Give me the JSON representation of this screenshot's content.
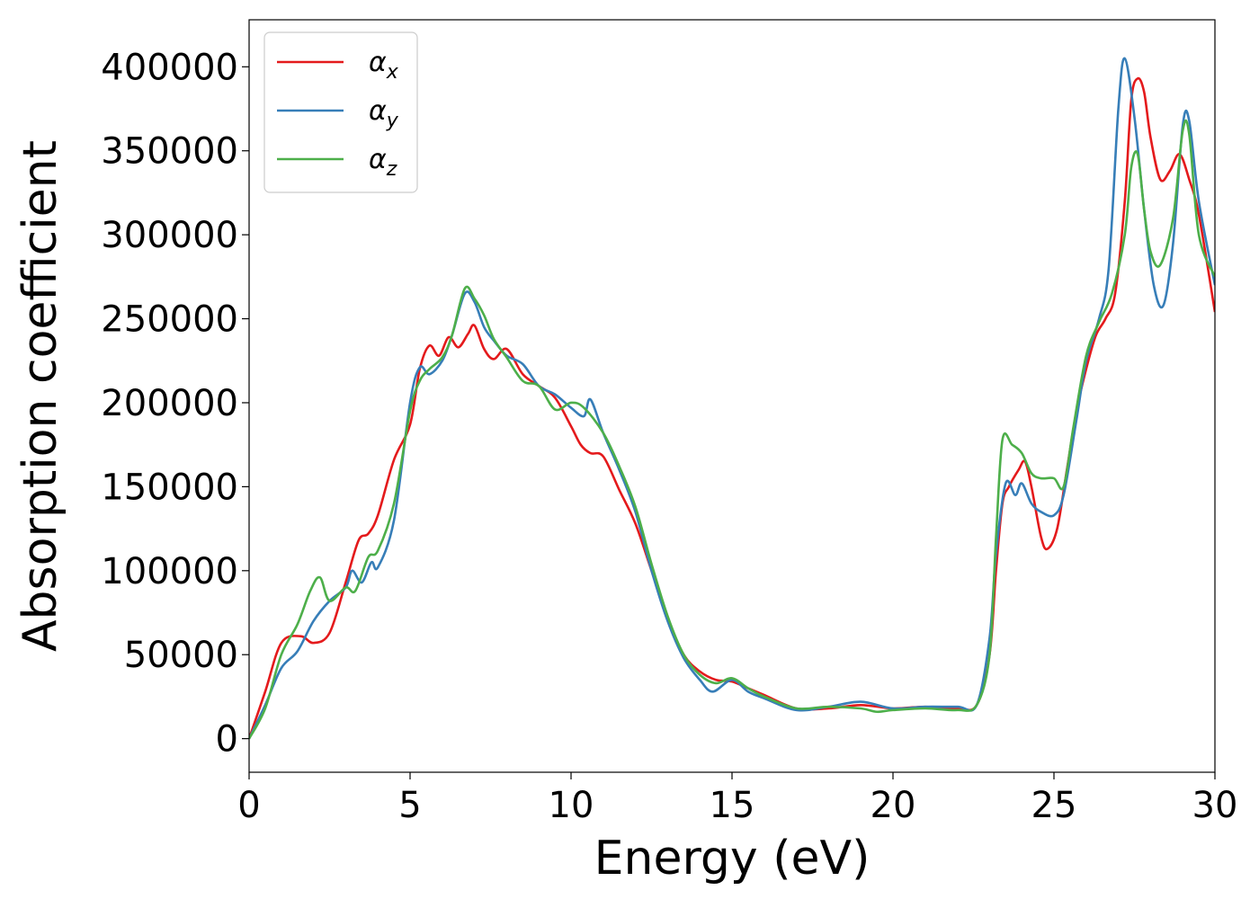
{
  "chart_data": {
    "type": "line",
    "title": "",
    "xlabel": "Energy (eV)",
    "ylabel": "Absorption coefficient",
    "xlim": [
      0,
      30
    ],
    "ylim": [
      -20000,
      428000
    ],
    "xticks": [
      0,
      5,
      10,
      15,
      20,
      25,
      30
    ],
    "yticks": [
      0,
      50000,
      100000,
      150000,
      200000,
      250000,
      300000,
      350000,
      400000
    ],
    "xtick_labels": [
      "0",
      "5",
      "10",
      "15",
      "20",
      "25",
      "30"
    ],
    "ytick_labels": [
      "0",
      "50000",
      "100000",
      "150000",
      "200000",
      "250000",
      "300000",
      "350000",
      "400000"
    ],
    "grid": false,
    "legend_position": "top-left",
    "series": [
      {
        "name": "α",
        "subscript": "x",
        "color": "#e41a1c",
        "points": [
          [
            0,
            0
          ],
          [
            0.5,
            28000
          ],
          [
            1,
            57000
          ],
          [
            1.6,
            61000
          ],
          [
            2,
            57000
          ],
          [
            2.5,
            63000
          ],
          [
            3,
            93000
          ],
          [
            3.4,
            118000
          ],
          [
            3.7,
            122000
          ],
          [
            4,
            133000
          ],
          [
            4.5,
            166000
          ],
          [
            5,
            187000
          ],
          [
            5.3,
            220000
          ],
          [
            5.6,
            234000
          ],
          [
            5.9,
            228000
          ],
          [
            6.2,
            239000
          ],
          [
            6.5,
            233000
          ],
          [
            6.8,
            241000
          ],
          [
            7,
            246000
          ],
          [
            7.3,
            232000
          ],
          [
            7.6,
            226000
          ],
          [
            8,
            232000
          ],
          [
            8.5,
            217000
          ],
          [
            9,
            210000
          ],
          [
            9.5,
            203000
          ],
          [
            10,
            186000
          ],
          [
            10.3,
            175000
          ],
          [
            10.6,
            170000
          ],
          [
            11,
            168000
          ],
          [
            11.5,
            148000
          ],
          [
            12,
            128000
          ],
          [
            12.5,
            100000
          ],
          [
            13,
            72000
          ],
          [
            13.5,
            50000
          ],
          [
            14,
            40000
          ],
          [
            14.5,
            35000
          ],
          [
            15,
            34000
          ],
          [
            15.5,
            30000
          ],
          [
            16,
            26000
          ],
          [
            17,
            18000
          ],
          [
            18,
            18000
          ],
          [
            19,
            20000
          ],
          [
            20,
            18000
          ],
          [
            21,
            19000
          ],
          [
            22,
            18000
          ],
          [
            22.6,
            20000
          ],
          [
            23,
            50000
          ],
          [
            23.2,
            100000
          ],
          [
            23.4,
            140000
          ],
          [
            23.6,
            150000
          ],
          [
            23.9,
            160000
          ],
          [
            24.1,
            165000
          ],
          [
            24.3,
            150000
          ],
          [
            24.6,
            120000
          ],
          [
            24.8,
            113000
          ],
          [
            25.1,
            125000
          ],
          [
            25.4,
            160000
          ],
          [
            25.7,
            195000
          ],
          [
            26,
            220000
          ],
          [
            26.3,
            240000
          ],
          [
            26.6,
            250000
          ],
          [
            26.9,
            265000
          ],
          [
            27.2,
            320000
          ],
          [
            27.4,
            380000
          ],
          [
            27.6,
            393000
          ],
          [
            27.8,
            385000
          ],
          [
            28,
            358000
          ],
          [
            28.3,
            333000
          ],
          [
            28.6,
            338000
          ],
          [
            28.9,
            348000
          ],
          [
            29.2,
            333000
          ],
          [
            29.5,
            312000
          ],
          [
            30,
            254000
          ]
        ]
      },
      {
        "name": "α",
        "subscript": "y",
        "color": "#377eb8",
        "points": [
          [
            0,
            0
          ],
          [
            0.5,
            20000
          ],
          [
            1,
            42000
          ],
          [
            1.5,
            52000
          ],
          [
            2,
            70000
          ],
          [
            2.5,
            82000
          ],
          [
            3,
            90000
          ],
          [
            3.2,
            100000
          ],
          [
            3.5,
            93000
          ],
          [
            3.8,
            105000
          ],
          [
            4,
            102000
          ],
          [
            4.5,
            130000
          ],
          [
            5,
            200000
          ],
          [
            5.3,
            221000
          ],
          [
            5.6,
            217000
          ],
          [
            6,
            225000
          ],
          [
            6.3,
            240000
          ],
          [
            6.7,
            265000
          ],
          [
            7,
            260000
          ],
          [
            7.3,
            245000
          ],
          [
            7.6,
            237000
          ],
          [
            8,
            228000
          ],
          [
            8.5,
            223000
          ],
          [
            9,
            210000
          ],
          [
            9.5,
            205000
          ],
          [
            10,
            197000
          ],
          [
            10.4,
            192000
          ],
          [
            10.6,
            202000
          ],
          [
            11,
            182000
          ],
          [
            11.5,
            160000
          ],
          [
            12,
            135000
          ],
          [
            12.5,
            100000
          ],
          [
            13,
            70000
          ],
          [
            13.5,
            48000
          ],
          [
            14,
            35000
          ],
          [
            14.4,
            28000
          ],
          [
            15,
            35000
          ],
          [
            15.5,
            28000
          ],
          [
            16,
            24000
          ],
          [
            17,
            17000
          ],
          [
            18,
            19000
          ],
          [
            19,
            22000
          ],
          [
            20,
            18000
          ],
          [
            21,
            19000
          ],
          [
            22,
            19000
          ],
          [
            22.6,
            20000
          ],
          [
            23,
            60000
          ],
          [
            23.2,
            110000
          ],
          [
            23.5,
            152000
          ],
          [
            23.8,
            145000
          ],
          [
            24,
            152000
          ],
          [
            24.3,
            140000
          ],
          [
            24.6,
            135000
          ],
          [
            25,
            133000
          ],
          [
            25.3,
            145000
          ],
          [
            25.7,
            190000
          ],
          [
            26,
            225000
          ],
          [
            26.4,
            250000
          ],
          [
            26.7,
            280000
          ],
          [
            27,
            375000
          ],
          [
            27.2,
            405000
          ],
          [
            27.5,
            370000
          ],
          [
            27.8,
            315000
          ],
          [
            28.1,
            270000
          ],
          [
            28.4,
            258000
          ],
          [
            28.7,
            295000
          ],
          [
            29,
            365000
          ],
          [
            29.2,
            368000
          ],
          [
            29.5,
            320000
          ],
          [
            30,
            270000
          ]
        ]
      },
      {
        "name": "α",
        "subscript": "z",
        "color": "#4daf4a",
        "points": [
          [
            0,
            0
          ],
          [
            0.5,
            18000
          ],
          [
            1,
            50000
          ],
          [
            1.5,
            68000
          ],
          [
            1.9,
            88000
          ],
          [
            2.2,
            96000
          ],
          [
            2.5,
            82000
          ],
          [
            3,
            90000
          ],
          [
            3.3,
            88000
          ],
          [
            3.7,
            108000
          ],
          [
            4,
            112000
          ],
          [
            4.5,
            140000
          ],
          [
            5,
            195000
          ],
          [
            5.3,
            213000
          ],
          [
            5.6,
            220000
          ],
          [
            6,
            227000
          ],
          [
            6.3,
            240000
          ],
          [
            6.7,
            268000
          ],
          [
            7,
            262000
          ],
          [
            7.3,
            252000
          ],
          [
            7.6,
            238000
          ],
          [
            8,
            227000
          ],
          [
            8.5,
            213000
          ],
          [
            9,
            210000
          ],
          [
            9.5,
            196000
          ],
          [
            10,
            200000
          ],
          [
            10.4,
            197000
          ],
          [
            11,
            182000
          ],
          [
            11.5,
            162000
          ],
          [
            12,
            138000
          ],
          [
            12.5,
            104000
          ],
          [
            13,
            73000
          ],
          [
            13.5,
            50000
          ],
          [
            14,
            38000
          ],
          [
            14.5,
            33000
          ],
          [
            15,
            36000
          ],
          [
            15.5,
            30000
          ],
          [
            16,
            25000
          ],
          [
            17,
            18000
          ],
          [
            18,
            19000
          ],
          [
            19,
            18000
          ],
          [
            19.5,
            16000
          ],
          [
            20,
            17000
          ],
          [
            21,
            18000
          ],
          [
            22,
            17000
          ],
          [
            22.6,
            20000
          ],
          [
            23,
            50000
          ],
          [
            23.2,
            120000
          ],
          [
            23.4,
            178000
          ],
          [
            23.7,
            175000
          ],
          [
            24,
            170000
          ],
          [
            24.3,
            158000
          ],
          [
            24.6,
            155000
          ],
          [
            25,
            155000
          ],
          [
            25.3,
            150000
          ],
          [
            25.6,
            185000
          ],
          [
            26,
            228000
          ],
          [
            26.4,
            248000
          ],
          [
            26.8,
            265000
          ],
          [
            27.2,
            300000
          ],
          [
            27.4,
            340000
          ],
          [
            27.6,
            348000
          ],
          [
            27.8,
            315000
          ],
          [
            28,
            290000
          ],
          [
            28.3,
            282000
          ],
          [
            28.7,
            310000
          ],
          [
            29,
            362000
          ],
          [
            29.2,
            360000
          ],
          [
            29.5,
            300000
          ],
          [
            30,
            275000
          ]
        ]
      }
    ]
  }
}
